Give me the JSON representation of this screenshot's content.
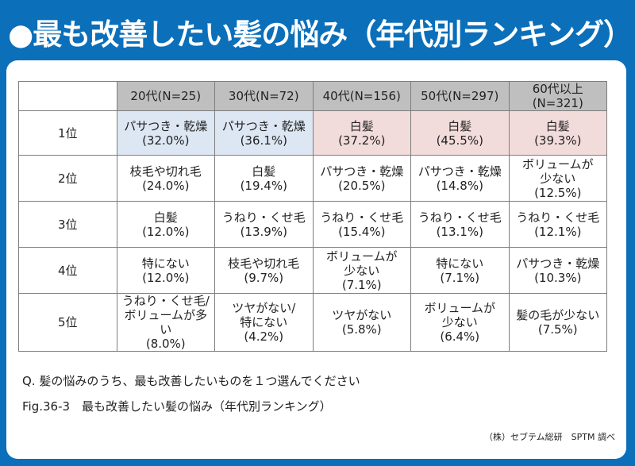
{
  "title": "●最も改善したい髪の悩み（年代別ランキング）",
  "chart_data": {
    "type": "table",
    "columns": [
      "20代(N=25)",
      "30代(N=72)",
      "40代(N=156)",
      "50代(N=297)",
      "60代以上(N=321)"
    ],
    "rows": [
      {
        "rank": "1位",
        "cells": [
          {
            "lines": [
              "パサつき・乾燥",
              "(32.0%)"
            ],
            "highlight": "#dde7f3"
          },
          {
            "lines": [
              "パサつき・乾燥",
              "(36.1%)"
            ],
            "highlight": "#dde7f3"
          },
          {
            "lines": [
              "白髪",
              "(37.2%)"
            ],
            "highlight": "#f2dcdb"
          },
          {
            "lines": [
              "白髪",
              "(45.5%)"
            ],
            "highlight": "#f2dcdb"
          },
          {
            "lines": [
              "白髪",
              "(39.3%)"
            ],
            "highlight": "#f2dcdb"
          }
        ]
      },
      {
        "rank": "2位",
        "cells": [
          {
            "lines": [
              "枝毛や切れ毛",
              "(24.0%)"
            ]
          },
          {
            "lines": [
              "白髪",
              "(19.4%)"
            ]
          },
          {
            "lines": [
              "パサつき・乾燥",
              "(20.5%)"
            ]
          },
          {
            "lines": [
              "パサつき・乾燥",
              "(14.8%)"
            ]
          },
          {
            "lines": [
              "ボリュームが",
              "少ない",
              "(12.5%)"
            ]
          }
        ]
      },
      {
        "rank": "3位",
        "cells": [
          {
            "lines": [
              "白髪",
              "(12.0%)"
            ]
          },
          {
            "lines": [
              "うねり・くせ毛",
              "(13.9%)"
            ]
          },
          {
            "lines": [
              "うねり・くせ毛",
              "(15.4%)"
            ]
          },
          {
            "lines": [
              "うねり・くせ毛",
              "(13.1%)"
            ]
          },
          {
            "lines": [
              "うねり・くせ毛",
              "(12.1%)"
            ]
          }
        ]
      },
      {
        "rank": "4位",
        "cells": [
          {
            "lines": [
              "特にない",
              "(12.0%)"
            ]
          },
          {
            "lines": [
              "枝毛や切れ毛",
              "(9.7%)"
            ]
          },
          {
            "lines": [
              "ボリュームが",
              "少ない",
              "(7.1%)"
            ]
          },
          {
            "lines": [
              "特にない",
              "(7.1%)"
            ]
          },
          {
            "lines": [
              "パサつき・乾燥",
              "(10.3%)"
            ]
          }
        ]
      },
      {
        "rank": "5位",
        "cells": [
          {
            "lines": [
              "うねり・くせ毛/",
              "ボリュームが多い",
              "(8.0%)"
            ]
          },
          {
            "lines": [
              "ツヤがない/",
              "特にない",
              "(4.2%)"
            ]
          },
          {
            "lines": [
              "ツヤがない",
              "(5.8%)"
            ]
          },
          {
            "lines": [
              "ボリュームが",
              "少ない",
              "(6.4%)"
            ]
          },
          {
            "lines": [
              "髪の毛が少ない",
              "(7.5%)"
            ]
          }
        ]
      }
    ]
  },
  "question": "Q. 髪の悩みのうち、最も改善したいものを１つ選んでください",
  "figure_caption": "Fig.36-3　最も改善したい髪の悩み（年代別ランキング）",
  "source": "（株）セブテム総研　SPTM 調べ",
  "colors": {
    "frame": "#0b6fba",
    "header": "#bfbfbf",
    "highlight_blue": "#dde7f3",
    "highlight_pink": "#f2dcdb"
  }
}
